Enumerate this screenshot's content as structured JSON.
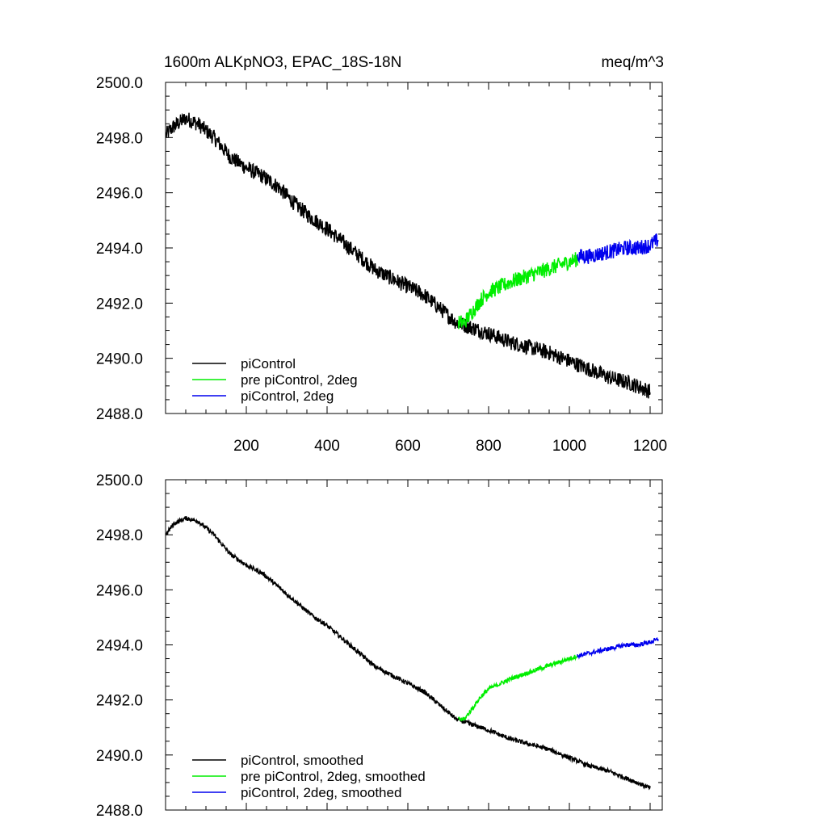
{
  "chart_data": [
    {
      "type": "line",
      "title_left": "1600m ALKpNO3, EPAC_18S-18N",
      "title_right": "meq/m^3",
      "xlim": [
        0,
        1230
      ],
      "ylim": [
        2488.0,
        2500.0
      ],
      "x_ticks": [
        200,
        400,
        600,
        800,
        1000,
        1200
      ],
      "x_tick_labels": [
        "200",
        "400",
        "600",
        "800",
        "1000",
        "1200"
      ],
      "y_ticks": [
        2488.0,
        2490.0,
        2492.0,
        2494.0,
        2496.0,
        2498.0,
        2500.0
      ],
      "y_tick_labels": [
        "2488.0",
        "2490.0",
        "2492.0",
        "2494.0",
        "2496.0",
        "2498.0",
        "2500.0"
      ],
      "noise": 0.28,
      "series": [
        {
          "name": "piControl",
          "color": "#000000",
          "x": [
            1,
            20,
            50,
            80,
            120,
            160,
            200,
            240,
            280,
            320,
            360,
            400,
            440,
            480,
            520,
            560,
            600,
            640,
            680,
            720,
            760,
            800,
            850,
            900,
            950,
            1000,
            1050,
            1100,
            1150,
            1200
          ],
          "y": [
            2498.1,
            2498.4,
            2498.7,
            2498.5,
            2498.0,
            2497.3,
            2496.9,
            2496.6,
            2496.2,
            2495.6,
            2495.1,
            2494.7,
            2494.2,
            2493.7,
            2493.2,
            2492.9,
            2492.6,
            2492.3,
            2491.8,
            2491.3,
            2491.1,
            2490.9,
            2490.6,
            2490.4,
            2490.2,
            2489.9,
            2489.6,
            2489.3,
            2489.1,
            2488.8
          ]
        },
        {
          "name": "pre piControl, 2deg",
          "color": "#00ee00",
          "x": [
            725,
            740,
            760,
            780,
            800,
            830,
            860,
            900,
            940,
            980,
            1020
          ],
          "y": [
            2491.3,
            2491.3,
            2491.7,
            2492.1,
            2492.4,
            2492.6,
            2492.8,
            2493.0,
            2493.2,
            2493.4,
            2493.6
          ]
        },
        {
          "name": "piControl, 2deg",
          "color": "#0000ee",
          "x": [
            1020,
            1050,
            1080,
            1110,
            1140,
            1170,
            1200,
            1220
          ],
          "y": [
            2493.7,
            2493.7,
            2493.8,
            2493.9,
            2494.0,
            2494.0,
            2494.1,
            2494.3
          ]
        }
      ]
    },
    {
      "type": "line",
      "xlim": [
        0,
        1230
      ],
      "ylim": [
        2488.0,
        2500.0
      ],
      "x_ticks": [
        200,
        400,
        600,
        800,
        1000,
        1200
      ],
      "y_ticks": [
        2488.0,
        2490.0,
        2492.0,
        2494.0,
        2496.0,
        2498.0,
        2500.0
      ],
      "y_tick_labels": [
        "2488.0",
        "2490.0",
        "2492.0",
        "2494.0",
        "2496.0",
        "2498.0",
        "2500.0"
      ],
      "noise": 0.08,
      "series": [
        {
          "name": "piControl, smoothed",
          "color": "#000000",
          "x": [
            1,
            20,
            50,
            80,
            120,
            160,
            200,
            240,
            280,
            320,
            360,
            400,
            440,
            480,
            520,
            560,
            600,
            640,
            680,
            720,
            760,
            800,
            850,
            900,
            950,
            1000,
            1050,
            1100,
            1150,
            1200
          ],
          "y": [
            2498.0,
            2498.4,
            2498.6,
            2498.5,
            2498.0,
            2497.3,
            2496.9,
            2496.6,
            2496.1,
            2495.6,
            2495.1,
            2494.7,
            2494.2,
            2493.7,
            2493.2,
            2492.9,
            2492.6,
            2492.3,
            2491.8,
            2491.3,
            2491.1,
            2490.9,
            2490.6,
            2490.4,
            2490.2,
            2489.9,
            2489.6,
            2489.4,
            2489.1,
            2488.8
          ]
        },
        {
          "name": "pre piControl, 2deg, smoothed",
          "color": "#00ee00",
          "x": [
            725,
            740,
            760,
            780,
            800,
            830,
            860,
            900,
            940,
            980,
            1020
          ],
          "y": [
            2491.3,
            2491.3,
            2491.7,
            2492.1,
            2492.4,
            2492.6,
            2492.8,
            2493.0,
            2493.2,
            2493.4,
            2493.6
          ]
        },
        {
          "name": "piControl, 2deg, smoothed",
          "color": "#0000ee",
          "x": [
            1020,
            1050,
            1080,
            1110,
            1140,
            1170,
            1200,
            1220
          ],
          "y": [
            2493.6,
            2493.7,
            2493.8,
            2493.9,
            2494.0,
            2494.0,
            2494.1,
            2494.2
          ]
        }
      ]
    }
  ]
}
